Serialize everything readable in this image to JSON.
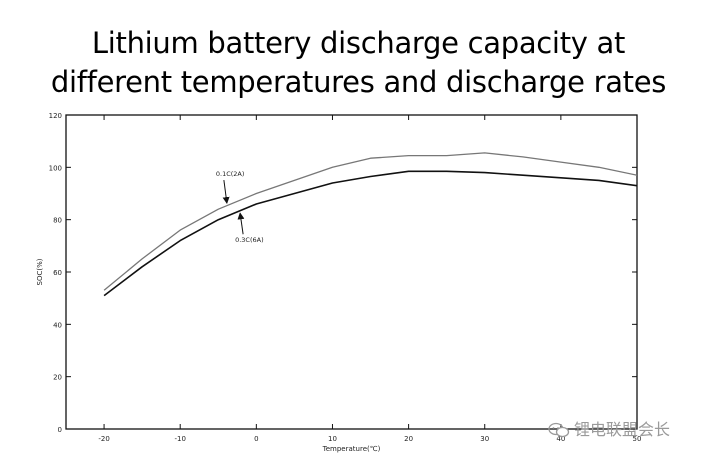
{
  "title_lines": [
    "Lithium battery discharge capacity at",
    "different temperatures and discharge rates"
  ],
  "watermark": {
    "text": "锂电联盟会长",
    "icon": "wechat-icon"
  },
  "chart_data": {
    "type": "line",
    "title": "Lithium battery discharge capacity at different temperatures and discharge rates",
    "xlabel": "Temperature(℃)",
    "ylabel": "SOC(%)",
    "xlim": [
      -25,
      50
    ],
    "ylim": [
      0,
      120
    ],
    "xticks": [
      -20,
      -10,
      0,
      10,
      20,
      30,
      40,
      50
    ],
    "yticks": [
      0,
      20,
      40,
      60,
      80,
      100,
      120
    ],
    "grid": false,
    "series": [
      {
        "name": "0.1C(2A)",
        "color": "#777777",
        "x": [
          -20,
          -15,
          -10,
          -5,
          0,
          5,
          10,
          15,
          20,
          25,
          30,
          35,
          40,
          45,
          50
        ],
        "y": [
          53,
          65,
          76,
          84,
          90,
          95,
          100,
          103.5,
          104.5,
          104.5,
          105.5,
          104,
          102,
          100,
          97
        ]
      },
      {
        "name": "0.3C(6A)",
        "color": "#111111",
        "x": [
          -20,
          -15,
          -10,
          -5,
          0,
          5,
          10,
          15,
          20,
          25,
          30,
          35,
          40,
          45,
          50
        ],
        "y": [
          51,
          62,
          72,
          80,
          86,
          90,
          94,
          96.5,
          98.5,
          98.5,
          98,
          97,
          96,
          95,
          93
        ]
      }
    ],
    "annotations": [
      {
        "text": "0.1C(2A)",
        "series": 0,
        "at_x": -4
      },
      {
        "text": "0.3C(6A)",
        "series": 1,
        "at_x": -2
      }
    ]
  }
}
